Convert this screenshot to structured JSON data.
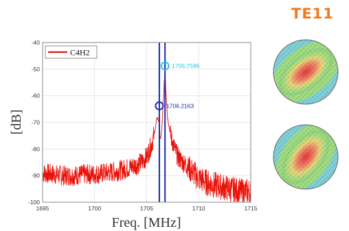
{
  "mode_label": "TE11",
  "chart_data": {
    "type": "line",
    "xlabel": "Freq. [MHz]",
    "ylabel": "[dB]",
    "xlim": [
      1695,
      1715
    ],
    "ylim": [
      -100,
      -40
    ],
    "xticks": [
      "1695",
      "1700",
      "1705",
      "1710",
      "1715"
    ],
    "yticks": [
      "-40",
      "-50",
      "-60",
      "-70",
      "-80",
      "-90",
      "-100"
    ],
    "grid": true,
    "legend": {
      "position": "top-left",
      "entries": [
        "C4H2"
      ]
    },
    "series": [
      {
        "name": "C4H2",
        "color": "#e8120a",
        "points": [
          [
            1695.0,
            -89
          ],
          [
            1696.0,
            -89.5
          ],
          [
            1697.0,
            -90
          ],
          [
            1698.0,
            -90
          ],
          [
            1699.0,
            -89.5
          ],
          [
            1700.0,
            -89.5
          ],
          [
            1701.0,
            -89
          ],
          [
            1702.0,
            -88.5
          ],
          [
            1703.0,
            -87.5
          ],
          [
            1704.0,
            -86
          ],
          [
            1704.5,
            -85
          ],
          [
            1705.0,
            -83
          ],
          [
            1705.5,
            -78
          ],
          [
            1705.8,
            -73
          ],
          [
            1706.0,
            -68
          ],
          [
            1706.2,
            -70
          ],
          [
            1706.3,
            -77
          ],
          [
            1706.45,
            -73
          ],
          [
            1706.6,
            -62
          ],
          [
            1706.7,
            -54
          ],
          [
            1706.76,
            -51
          ],
          [
            1706.85,
            -58
          ],
          [
            1707.0,
            -68
          ],
          [
            1707.3,
            -75
          ],
          [
            1707.7,
            -80
          ],
          [
            1708.0,
            -83
          ],
          [
            1709.0,
            -87
          ],
          [
            1710.0,
            -91
          ],
          [
            1711.0,
            -93
          ],
          [
            1712.0,
            -94
          ],
          [
            1713.0,
            -95
          ],
          [
            1714.0,
            -96
          ],
          [
            1715.0,
            -96
          ]
        ]
      }
    ],
    "markers": [
      {
        "x": 1706.7596,
        "y": -48.8,
        "label": "1706.7596",
        "color": "#1ec8e6"
      },
      {
        "x": 1706.2163,
        "y": -63.8,
        "label": "1706.2163",
        "color": "#1a2aa8"
      }
    ],
    "vlines": [
      {
        "x": 1706.2163,
        "color": "#1a2aa8"
      },
      {
        "x": 1706.7596,
        "color": "#1a2aa8"
      }
    ]
  }
}
